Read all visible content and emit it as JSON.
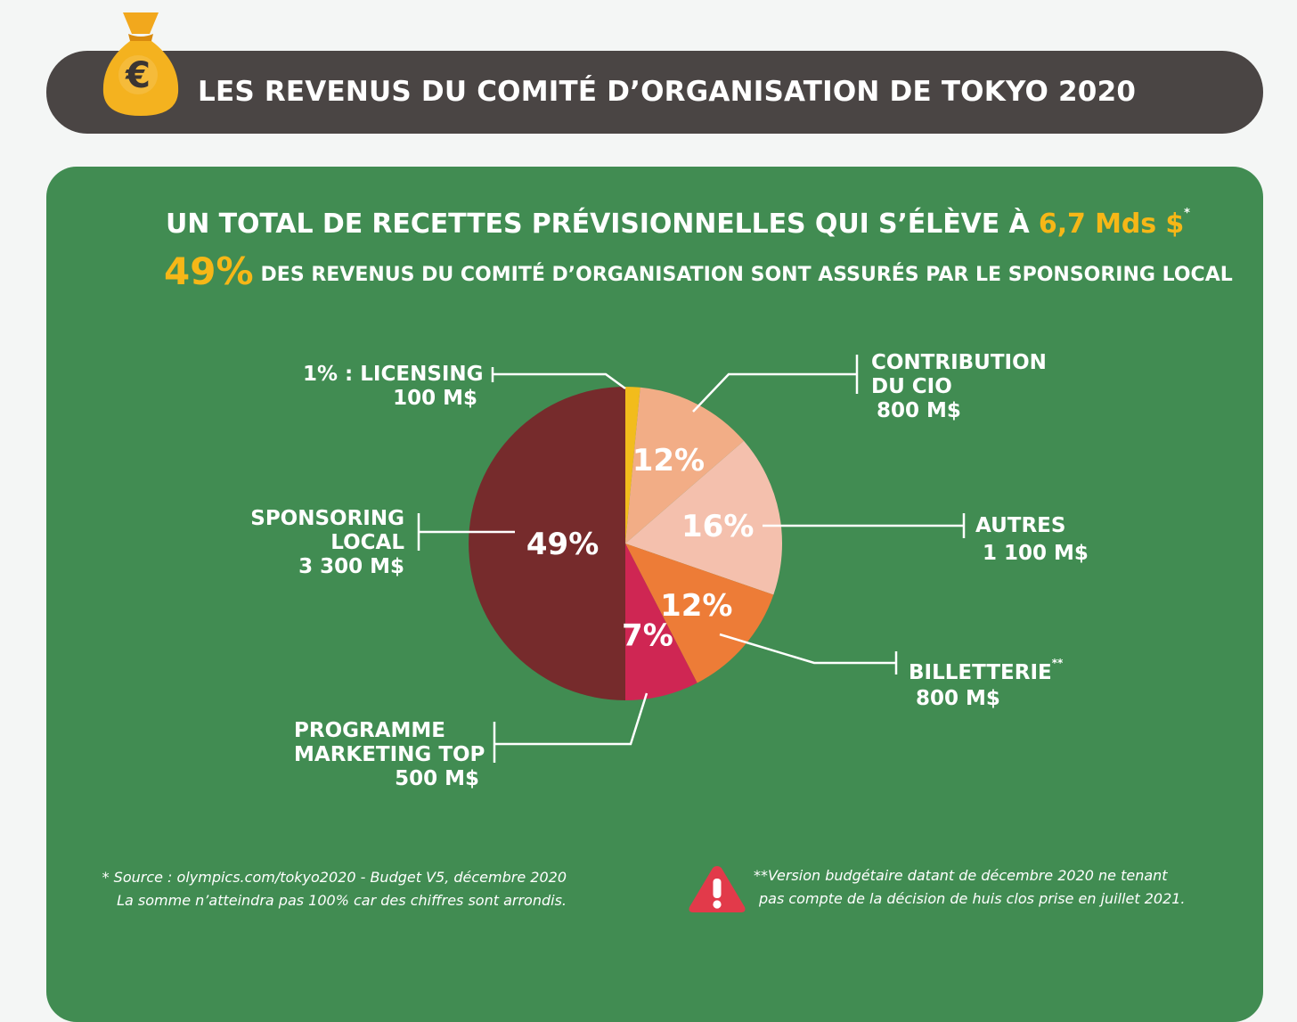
{
  "header": {
    "title": "LES REVENUS DU COMITÉ D’ORGANISATION DE TOKYO 2020",
    "icon": "money-bag-euro-icon",
    "bag_symbol": "€"
  },
  "headline": {
    "text": "UN TOTAL DE RECETTES PRÉVISIONNELLES QUI S’ÉLÈVE À",
    "amount": "6,7 Mds $",
    "mark": "*"
  },
  "subline": {
    "big": "49%",
    "text": "DES REVENUS DU COMITÉ D’ORGANISATION SONT ASSURÉS PAR LE SPONSORING LOCAL"
  },
  "colors": {
    "banner": "#4a4544",
    "panel": "#418c52",
    "accent": "#f6b717"
  },
  "chart_data": {
    "type": "pie",
    "start": "top, clockwise",
    "slices": [
      {
        "key": "licensing",
        "label": "1% : LICENSING",
        "value_text": "100 M$",
        "value": 100,
        "percent": "",
        "color": "#f2bc1c"
      },
      {
        "key": "cio",
        "label": "CONTRIBUTION DU CIO",
        "label_lines": [
          "CONTRIBUTION",
          "DU CIO"
        ],
        "value_text": "800 M$",
        "value": 800,
        "percent": "12%",
        "color": "#f2ad86"
      },
      {
        "key": "autres",
        "label": "AUTRES",
        "value_text": "1 100 M$",
        "value": 1100,
        "percent": "16%",
        "color": "#f4c0ad"
      },
      {
        "key": "billetterie",
        "label": "BILLETTERIE",
        "mark": "**",
        "value_text": "800 M$",
        "value": 800,
        "percent": "12%",
        "color": "#ed7c37"
      },
      {
        "key": "top",
        "label": "PROGRAMME MARKETING TOP",
        "label_lines": [
          "PROGRAMME",
          "MARKETING TOP"
        ],
        "value_text": "500 M$",
        "value": 500,
        "percent": "7%",
        "color": "#cf2653"
      },
      {
        "key": "sponsoring",
        "label": "SPONSORING LOCAL",
        "label_lines": [
          "SPONSORING",
          "LOCAL"
        ],
        "value_text": "3 300 M$",
        "value": 3300,
        "percent": "49%",
        "color": "#762b2c"
      }
    ]
  },
  "footnotes": {
    "source_line1": "* Source : olympics.com/tokyo2020 - Budget V5, décembre 2020",
    "source_line2": "La somme n’atteindra pas 100% car des chiffres sont arrondis.",
    "warning_icon": "warning-triangle-icon",
    "warning_line1": "**Version budgétaire datant de décembre 2020 ne tenant",
    "warning_line2": "pas compte de la décision de huis clos prise en juillet 2021."
  }
}
